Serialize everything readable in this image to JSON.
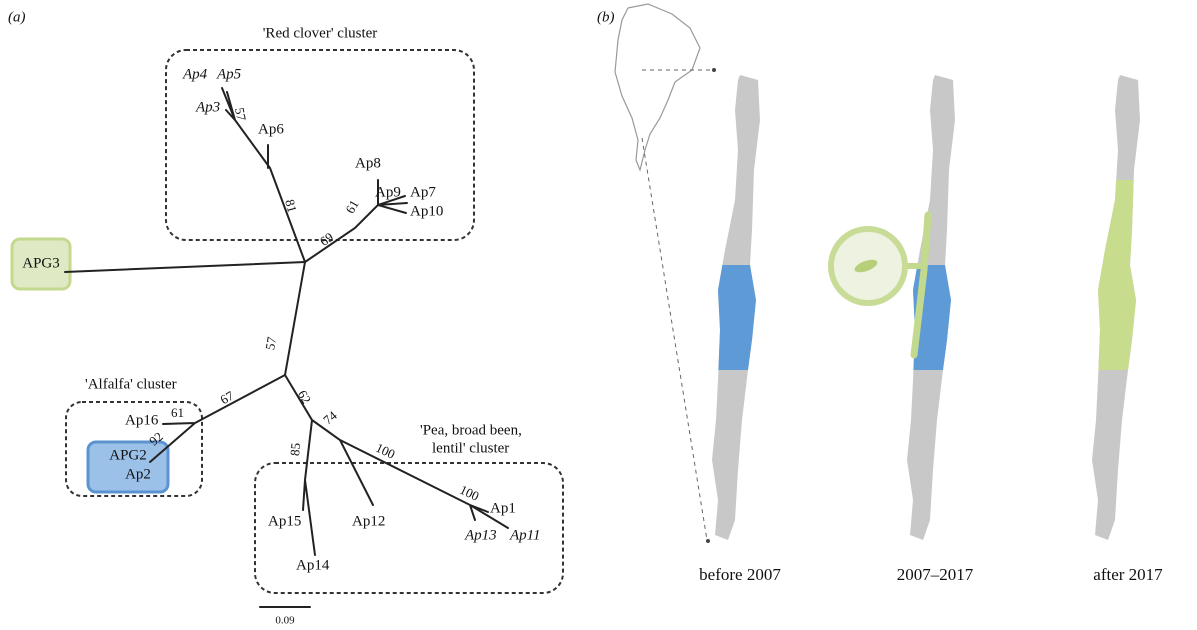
{
  "panel_a": {
    "label": "(a)",
    "clusters": {
      "red_clover": "'Red clover' cluster",
      "alfalfa": "'Alfalfa' cluster",
      "pea": [
        "'Pea, broad been,",
        "lentil' cluster"
      ]
    },
    "leaves": [
      "Ap4",
      "Ap5",
      "Ap3",
      "Ap6",
      "Ap8",
      "Ap9",
      "Ap7",
      "Ap10",
      "APG3",
      "Ap16",
      "APG2",
      "Ap2",
      "Ap15",
      "Ap14",
      "Ap12",
      "Ap1",
      "Ap13",
      "Ap11"
    ],
    "support": [
      "57",
      "81",
      "61",
      "69",
      "57",
      "67",
      "61",
      "92",
      "62",
      "74",
      "85",
      "100",
      "100"
    ],
    "scale": "0.09"
  },
  "panel_b": {
    "label": "(b)",
    "periods": [
      "before 2007",
      "2007–2017",
      "after 2017"
    ]
  }
}
